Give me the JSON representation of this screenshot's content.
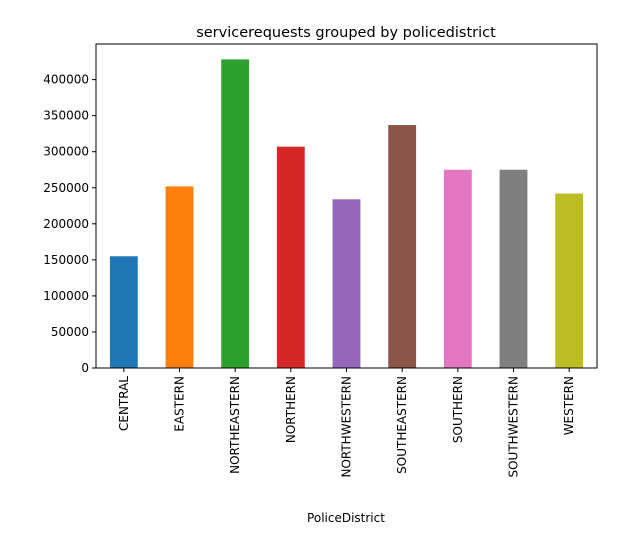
{
  "chart_data": {
    "type": "bar",
    "title": "servicerequests grouped by policedistrict",
    "xlabel": "PoliceDistrict",
    "ylabel": "",
    "categories": [
      "CENTRAL",
      "EASTERN",
      "NORTHEASTERN",
      "NORTHERN",
      "NORTHWESTERN",
      "SOUTHEASTERN",
      "SOUTHERN",
      "SOUTHWESTERN",
      "WESTERN"
    ],
    "values": [
      155000,
      252000,
      428000,
      307000,
      234000,
      337000,
      275000,
      275000,
      242000
    ],
    "colors": [
      "#1f77b4",
      "#ff7f0e",
      "#2ca02c",
      "#d62728",
      "#9467bd",
      "#8c564b",
      "#e377c2",
      "#7f7f7f",
      "#bcbd22"
    ],
    "yticks": [
      0,
      50000,
      100000,
      150000,
      200000,
      250000,
      300000,
      350000,
      400000
    ],
    "ylim": [
      0,
      449400
    ],
    "grid": false,
    "legend": "none"
  }
}
